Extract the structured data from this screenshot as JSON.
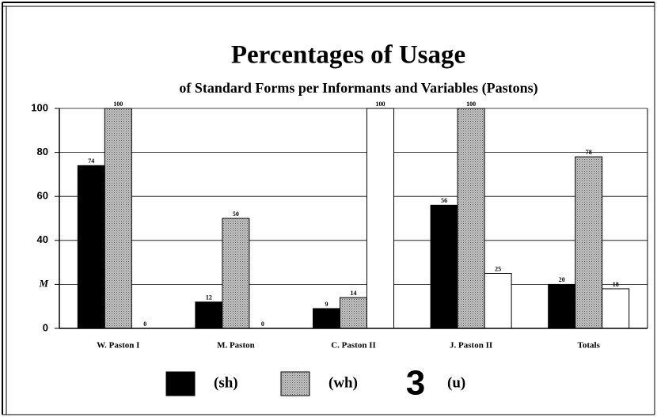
{
  "chart_data": {
    "type": "bar",
    "title": "Percentages of Usage",
    "subtitle": "of Standard Forms per Informants and Variables (Pastons)",
    "categories": [
      "W. Paston I",
      "M. Paston",
      "C. Paston II",
      "J. Paston II",
      "Totals"
    ],
    "series": [
      {
        "name": "(sh)",
        "color": "#000000",
        "values": [
          74,
          12,
          9,
          56,
          20
        ]
      },
      {
        "name": "(wh)",
        "color": "#c4c4c4",
        "values": [
          100,
          50,
          14,
          100,
          78
        ]
      },
      {
        "name": "(u)",
        "color": "#ffffff",
        "marker": "3",
        "values": [
          0,
          0,
          100,
          25,
          18
        ]
      }
    ],
    "ylim": [
      0,
      100
    ],
    "yticks": [
      0,
      {
        "value": 20,
        "label": "M"
      },
      40,
      60,
      80,
      100
    ],
    "grid": true,
    "legend": "bottom"
  }
}
